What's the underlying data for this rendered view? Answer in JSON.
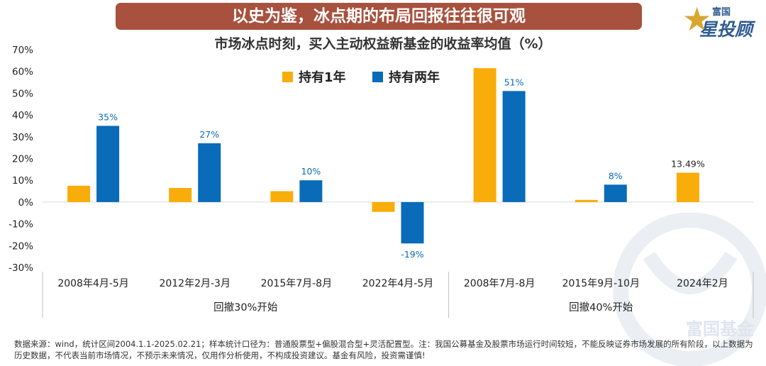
{
  "header": {
    "banner_title": "以史为鉴，冰点期的布局回报往往很可观",
    "logo_top": "富国",
    "logo_main": "星投顾",
    "watermark_text": "富国基金"
  },
  "chart_data": {
    "type": "bar",
    "title": "市场冰点时刻，买入主动权益新基金的收益率均值（%）",
    "categories": [
      "2008年4月-5月",
      "2012年2月-3月",
      "2015年7月-8月",
      "2022年4月-5月",
      "2008年7月-8月",
      "2015年9月-10月",
      "2024年2月"
    ],
    "groups": [
      {
        "label": "回撤30%开始",
        "categories": [
          "2008年4月-5月",
          "2012年2月-3月",
          "2015年7月-8月",
          "2022年4月-5月"
        ]
      },
      {
        "label": "回撤40%开始",
        "categories": [
          "2008年7月-8月",
          "2015年9月-10月",
          "2024年2月"
        ]
      }
    ],
    "series": [
      {
        "name": "持有1年",
        "color": "#f9ad0a",
        "values": [
          7.5,
          6.5,
          5,
          -4.5,
          61.5,
          1,
          13.49
        ],
        "labels": [
          "",
          "",
          "",
          "",
          "",
          "",
          "13.49%"
        ],
        "label_color": "#222222"
      },
      {
        "name": "持有两年",
        "color": "#0a6bb8",
        "values": [
          35,
          27,
          10,
          -19,
          51,
          8,
          null
        ],
        "labels": [
          "35%",
          "27%",
          "10%",
          "-19%",
          "51%",
          "8%",
          ""
        ],
        "label_color": "#0a6bb8"
      }
    ],
    "ylim": [
      -30,
      70
    ],
    "yticks": [
      "-30%",
      "-20%",
      "-10%",
      "0%",
      "10%",
      "20%",
      "30%",
      "40%",
      "50%",
      "60%",
      "70%"
    ],
    "legend_position": "top-center",
    "grid": false
  },
  "footnote": "数据来源：wind，统计区间2004.1.1-2025.02.21；样本统计口径为：普通股票型+偏股混合型+灵活配置型。注：我国公募基金及股票市场运行时间较短，不能反映证券市场发展的所有阶段，以上数据为历史数据，不代表当前市场情况，不预示未来情况，仅用作分析使用，不构成投资建议。基金有风险，投资需谨慎!"
}
